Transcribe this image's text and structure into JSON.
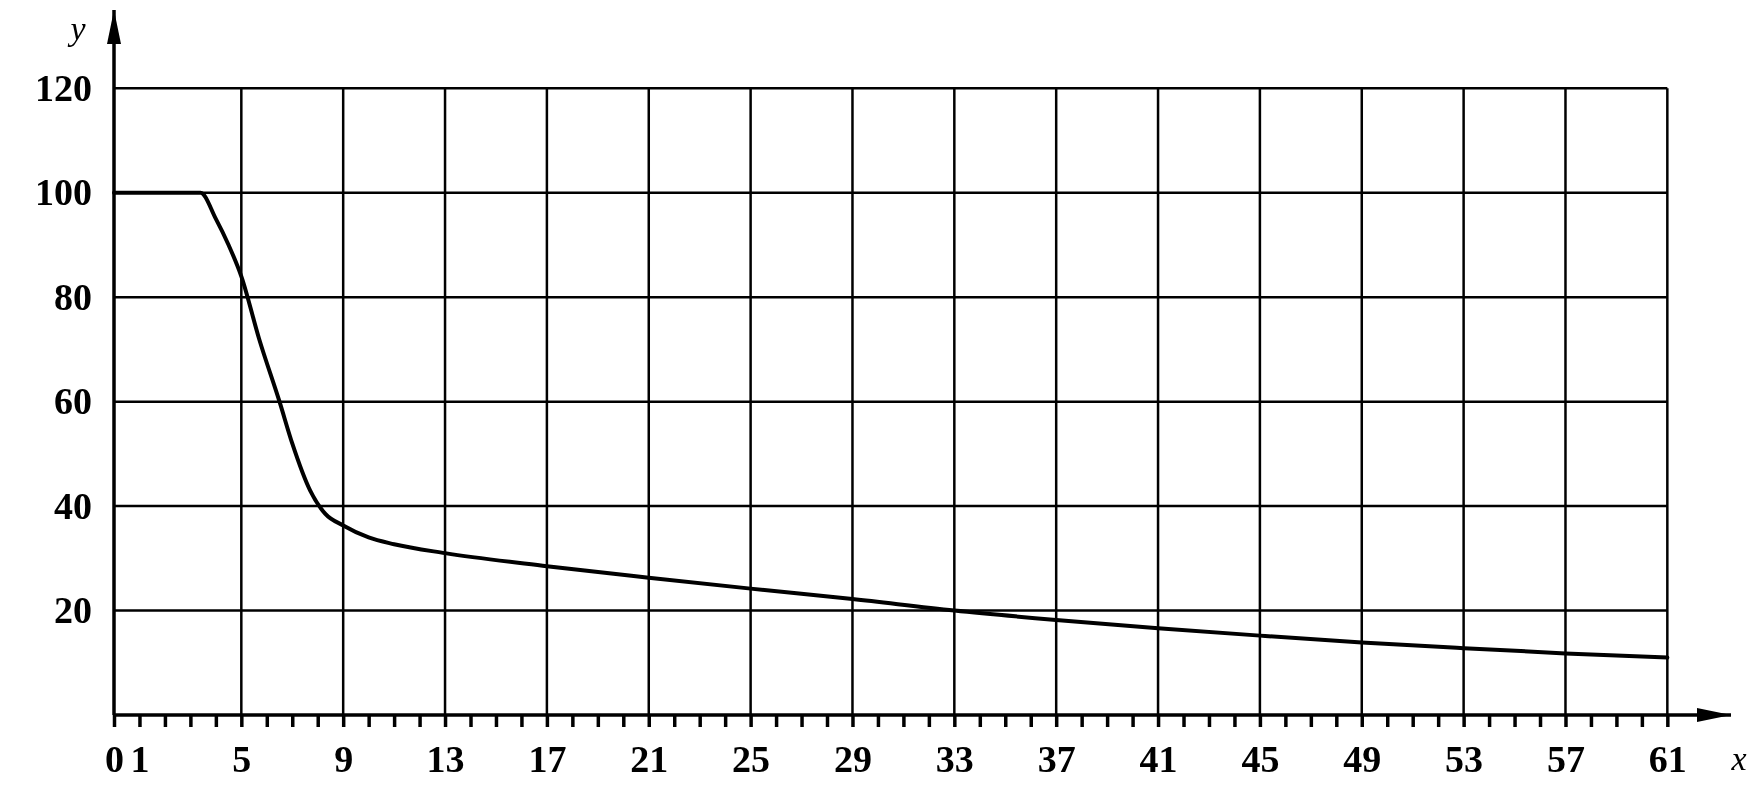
{
  "chart_data": {
    "type": "line",
    "xlabel": "x",
    "ylabel": "y",
    "x": [
      0,
      3.4,
      4,
      4.5,
      5,
      5.7,
      6.5,
      7,
      7.7,
      8.3,
      9,
      10,
      11,
      13,
      17,
      21,
      25,
      29,
      33,
      37,
      41,
      45,
      49,
      53,
      57,
      61
    ],
    "series": [
      {
        "color": "#000000",
        "values": [
          100,
          100,
          95,
          90,
          84,
          72,
          60,
          52,
          43,
          38.5,
          36.3,
          34,
          32.7,
          31,
          28.5,
          26.3,
          24.2,
          22.2,
          20,
          18.2,
          16.6,
          15.2,
          13.9,
          12.8,
          11.8,
          11
        ]
      }
    ],
    "xlim": [
      0,
      63.5
    ],
    "ylim": [
      0,
      135
    ],
    "xticks": [
      0,
      1,
      {
        "value": 2,
        "label": null
      },
      {
        "value": 3,
        "label": null
      },
      {
        "value": 4,
        "label": null
      },
      5,
      {
        "value": 6,
        "label": null
      },
      {
        "value": 7,
        "label": null
      },
      {
        "value": 8,
        "label": null
      },
      9,
      {
        "value": 10,
        "label": null
      },
      {
        "value": 11,
        "label": null
      },
      {
        "value": 12,
        "label": null
      },
      13,
      {
        "value": 14,
        "label": null
      },
      {
        "value": 15,
        "label": null
      },
      {
        "value": 16,
        "label": null
      },
      17,
      {
        "value": 18,
        "label": null
      },
      {
        "value": 19,
        "label": null
      },
      {
        "value": 20,
        "label": null
      },
      21,
      {
        "value": 22,
        "label": null
      },
      {
        "value": 23,
        "label": null
      },
      {
        "value": 24,
        "label": null
      },
      25,
      {
        "value": 26,
        "label": null
      },
      {
        "value": 27,
        "label": null
      },
      {
        "value": 28,
        "label": null
      },
      29,
      {
        "value": 30,
        "label": null
      },
      {
        "value": 31,
        "label": null
      },
      {
        "value": 32,
        "label": null
      },
      33,
      {
        "value": 34,
        "label": null
      },
      {
        "value": 35,
        "label": null
      },
      {
        "value": 36,
        "label": null
      },
      37,
      {
        "value": 38,
        "label": null
      },
      {
        "value": 39,
        "label": null
      },
      {
        "value": 40,
        "label": null
      },
      41,
      {
        "value": 42,
        "label": null
      },
      {
        "value": 43,
        "label": null
      },
      {
        "value": 44,
        "label": null
      },
      45,
      {
        "value": 46,
        "label": null
      },
      {
        "value": 47,
        "label": null
      },
      {
        "value": 48,
        "label": null
      },
      49,
      {
        "value": 50,
        "label": null
      },
      {
        "value": 51,
        "label": null
      },
      {
        "value": 52,
        "label": null
      },
      53,
      {
        "value": 54,
        "label": null
      },
      {
        "value": 55,
        "label": null
      },
      {
        "value": 56,
        "label": null
      },
      57,
      {
        "value": 58,
        "label": null
      },
      {
        "value": 59,
        "label": null
      },
      {
        "value": 60,
        "label": null
      },
      61
    ],
    "yticks": [
      20,
      40,
      60,
      80,
      100,
      120
    ],
    "grid": true,
    "marker": "none",
    "line_style": "solid"
  }
}
